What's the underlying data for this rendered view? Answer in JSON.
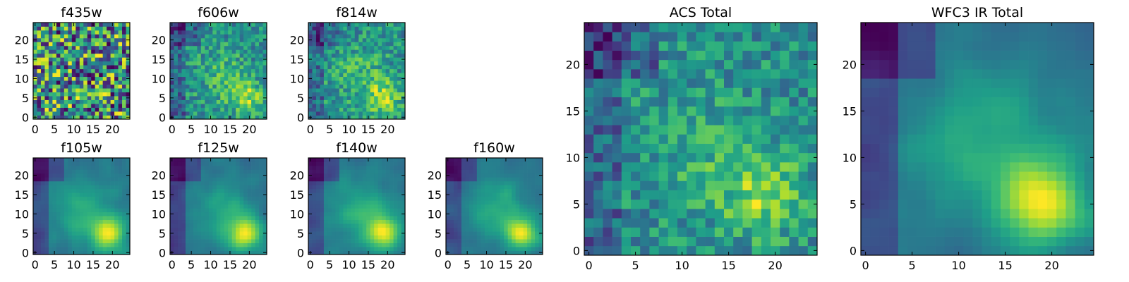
{
  "chart_data": [
    {
      "id": "f435w",
      "type": "heatmap",
      "title": "f435w",
      "grid": false,
      "xlim": [
        0,
        24
      ],
      "ylim": [
        0,
        24
      ],
      "xticks": [
        0,
        5,
        10,
        15,
        20
      ],
      "yticks": [
        0,
        5,
        10,
        15,
        20
      ],
      "hotspot": null,
      "pattern": "noise"
    },
    {
      "id": "f606w",
      "type": "heatmap",
      "title": "f606w",
      "grid": false,
      "xlim": [
        0,
        24
      ],
      "ylim": [
        0,
        24
      ],
      "xticks": [
        0,
        5,
        10,
        15,
        20
      ],
      "yticks": [
        0,
        5,
        10,
        15,
        20
      ],
      "hotspot": [
        19,
        5
      ],
      "pattern": "noisy-blob"
    },
    {
      "id": "f814w",
      "type": "heatmap",
      "title": "f814w",
      "grid": false,
      "xlim": [
        0,
        24
      ],
      "ylim": [
        0,
        24
      ],
      "xticks": [
        0,
        5,
        10,
        15,
        20
      ],
      "yticks": [
        0,
        5,
        10,
        15,
        20
      ],
      "hotspot": [
        19,
        5
      ],
      "pattern": "noisy-blob"
    },
    {
      "id": "f105w",
      "type": "heatmap",
      "title": "f105w",
      "grid": false,
      "xlim": [
        0,
        24
      ],
      "ylim": [
        0,
        24
      ],
      "xticks": [
        0,
        5,
        10,
        15,
        20
      ],
      "yticks": [
        0,
        5,
        10,
        15,
        20
      ],
      "hotspot": [
        19,
        5
      ],
      "pattern": "smooth-blob"
    },
    {
      "id": "f125w",
      "type": "heatmap",
      "title": "f125w",
      "grid": false,
      "xlim": [
        0,
        24
      ],
      "ylim": [
        0,
        24
      ],
      "xticks": [
        0,
        5,
        10,
        15,
        20
      ],
      "yticks": [
        0,
        5,
        10,
        15,
        20
      ],
      "hotspot": [
        19,
        5
      ],
      "pattern": "smooth-blob"
    },
    {
      "id": "f140w",
      "type": "heatmap",
      "title": "f140w",
      "grid": false,
      "xlim": [
        0,
        24
      ],
      "ylim": [
        0,
        24
      ],
      "xticks": [
        0,
        5,
        10,
        15,
        20
      ],
      "yticks": [
        0,
        5,
        10,
        15,
        20
      ],
      "hotspot": [
        19,
        5
      ],
      "pattern": "smooth-blob"
    },
    {
      "id": "f160w",
      "type": "heatmap",
      "title": "f160w",
      "grid": false,
      "xlim": [
        0,
        24
      ],
      "ylim": [
        0,
        24
      ],
      "xticks": [
        0,
        5,
        10,
        15,
        20
      ],
      "yticks": [
        0,
        5,
        10,
        15,
        20
      ],
      "hotspot": [
        19,
        5
      ],
      "pattern": "smooth-blob"
    },
    {
      "id": "acs_total",
      "type": "heatmap",
      "title": "ACS Total",
      "grid": false,
      "xlim": [
        0,
        24
      ],
      "ylim": [
        0,
        24
      ],
      "xticks": [
        0,
        5,
        10,
        15,
        20
      ],
      "yticks": [
        0,
        5,
        10,
        15,
        20
      ],
      "hotspot": [
        19,
        6
      ],
      "pattern": "noisy-blob"
    },
    {
      "id": "wfc3_ir_total",
      "type": "heatmap",
      "title": "WFC3 IR Total",
      "grid": false,
      "xlim": [
        0,
        24
      ],
      "ylim": [
        0,
        24
      ],
      "xticks": [
        0,
        5,
        10,
        15,
        20
      ],
      "yticks": [
        0,
        5,
        10,
        15,
        20
      ],
      "hotspot": [
        19,
        5
      ],
      "pattern": "smooth-blob"
    }
  ],
  "colors": {
    "colormap": "viridis",
    "frame": "#000000",
    "background": "#ffffff"
  }
}
